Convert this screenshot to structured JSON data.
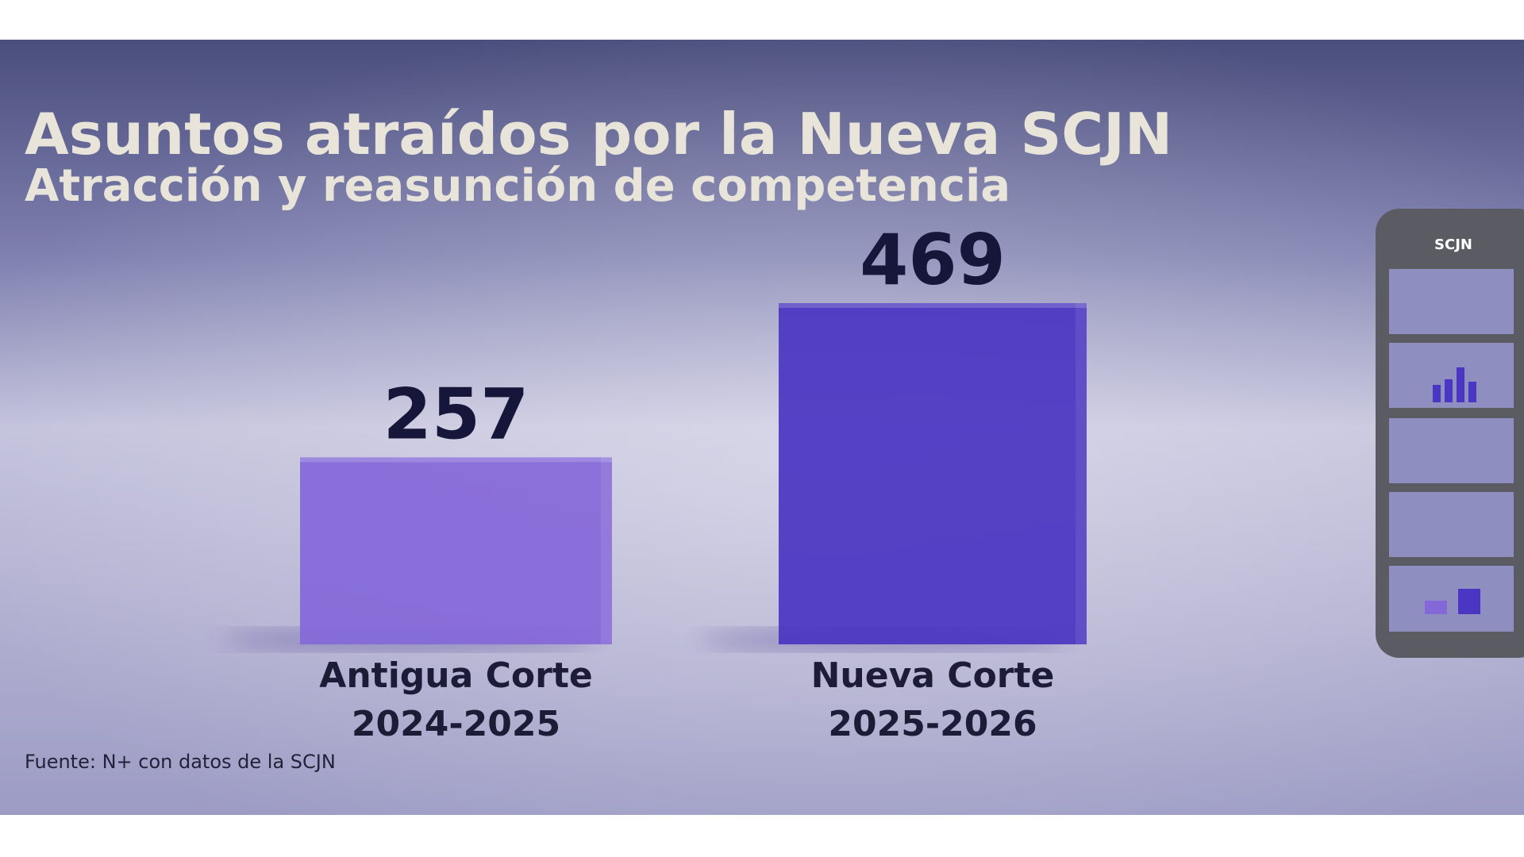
{
  "chart_data": {
    "type": "bar",
    "title": "Asuntos atraídos por la Nueva SCJN",
    "subtitle": "Atracción y reasunción de competencia",
    "categories": [
      "Antigua Corte",
      "Nueva Corte"
    ],
    "periods": [
      "2024-2025",
      "2025-2026"
    ],
    "values": [
      257,
      469
    ],
    "colors": [
      "#8468d8",
      "#4a36c2"
    ],
    "source": "Fuente: N+ con datos de la SCJN"
  },
  "side_panel": {
    "title": "SCJN"
  }
}
